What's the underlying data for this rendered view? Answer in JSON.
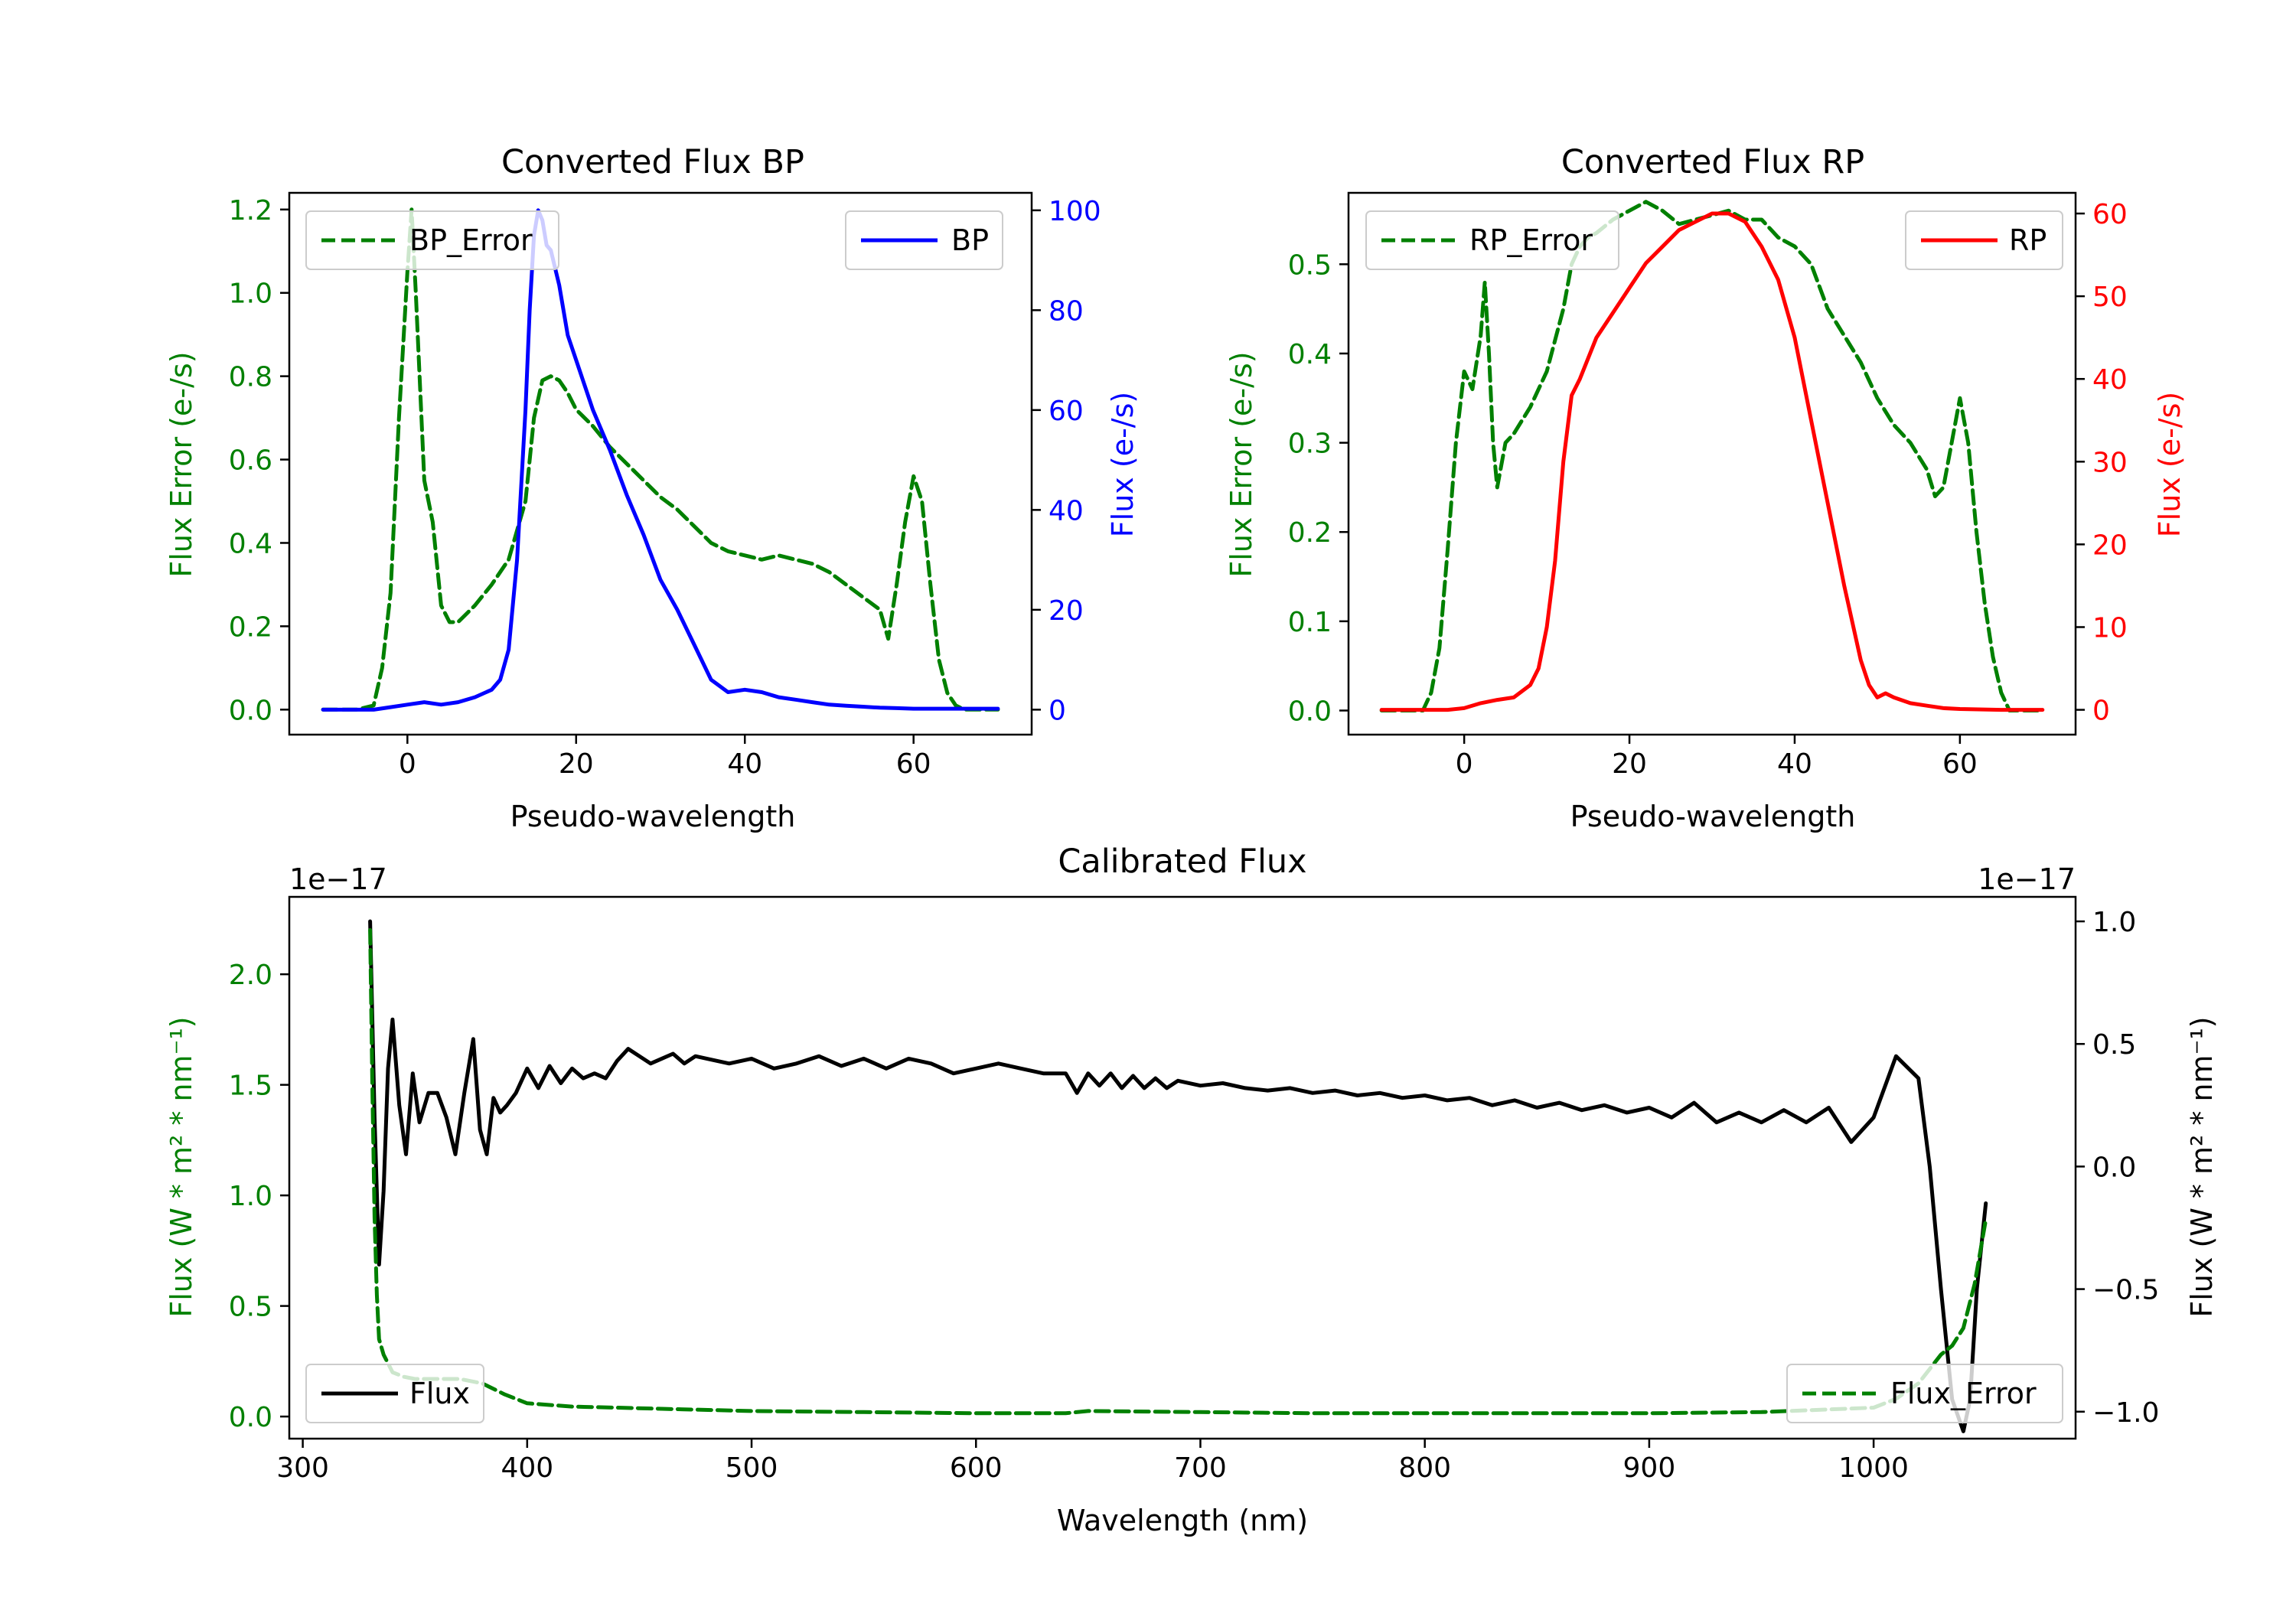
{
  "colors": {
    "bp": "#0000ff",
    "rp": "#ff0000",
    "error": "#008000",
    "flux": "#000000",
    "axis": "#000000"
  },
  "chart_data": [
    {
      "id": "bp",
      "type": "line",
      "title": "Converted Flux BP",
      "xlabel": "Pseudo-wavelength",
      "ylabel_left": "Flux Error (e-/s)",
      "ylabel_right": "Flux (e-/s)",
      "xlim": [
        -14,
        74
      ],
      "ylim_left": [
        -0.06,
        1.24
      ],
      "ylim_right": [
        -5,
        103.5
      ],
      "xticks": [
        0,
        20,
        40,
        60
      ],
      "yticks_left": [
        0.0,
        0.2,
        0.4,
        0.6,
        0.8,
        1.0,
        1.2
      ],
      "yticks_left_labels": [
        "0.0",
        "0.2",
        "0.4",
        "0.6",
        "0.8",
        "1.0",
        "1.2"
      ],
      "yticks_right": [
        0,
        20,
        40,
        60,
        80,
        100
      ],
      "yticks_right_labels": [
        "0",
        "20",
        "40",
        "60",
        "80",
        "100"
      ],
      "legend_left": {
        "label": "BP_Error",
        "placement": "upper left"
      },
      "legend_right": {
        "label": "BP",
        "placement": "upper right"
      },
      "series": [
        {
          "name": "BP_Error",
          "axis": "left",
          "style": "dashed",
          "color_key": "error",
          "x": [
            -10,
            -6,
            -4,
            -3,
            -2,
            -1,
            0,
            0.5,
            1,
            2,
            3,
            4,
            5,
            6,
            7,
            8,
            10,
            12,
            14,
            15,
            16,
            17,
            18,
            19,
            20,
            22,
            24,
            26,
            28,
            30,
            32,
            34,
            36,
            38,
            40,
            42,
            44,
            46,
            48,
            50,
            52,
            54,
            56,
            57,
            58,
            59,
            60,
            61,
            62,
            63,
            64,
            65,
            66,
            68,
            70
          ],
          "y": [
            0.0,
            0.0,
            0.01,
            0.1,
            0.28,
            0.7,
            1.05,
            1.2,
            1.0,
            0.55,
            0.45,
            0.25,
            0.21,
            0.21,
            0.23,
            0.25,
            0.3,
            0.36,
            0.5,
            0.7,
            0.79,
            0.8,
            0.79,
            0.76,
            0.72,
            0.68,
            0.63,
            0.59,
            0.55,
            0.51,
            0.48,
            0.44,
            0.4,
            0.38,
            0.37,
            0.36,
            0.37,
            0.36,
            0.35,
            0.33,
            0.3,
            0.27,
            0.24,
            0.17,
            0.3,
            0.45,
            0.56,
            0.5,
            0.3,
            0.12,
            0.04,
            0.01,
            0.0,
            0.0,
            0.0
          ]
        },
        {
          "name": "BP",
          "axis": "right",
          "style": "solid",
          "color_key": "bp",
          "x": [
            -10,
            -8,
            -4,
            -2,
            0,
            2,
            4,
            6,
            8,
            10,
            11,
            12,
            13,
            14,
            14.5,
            15,
            15.5,
            16,
            16.5,
            17,
            18,
            19,
            20,
            22,
            24,
            26,
            28,
            30,
            32,
            34,
            36,
            38,
            40,
            42,
            44,
            46,
            48,
            50,
            52,
            54,
            56,
            58,
            60,
            64,
            68,
            70
          ],
          "y": [
            0,
            0,
            0,
            0.5,
            1,
            1.5,
            1,
            1.5,
            2.5,
            4,
            6,
            12,
            30,
            60,
            80,
            95,
            100,
            98,
            93,
            92,
            85,
            75,
            70,
            60,
            52,
            43,
            35,
            26,
            20,
            13,
            6,
            3.5,
            4,
            3.5,
            2.5,
            2,
            1.5,
            1,
            0.8,
            0.6,
            0.4,
            0.3,
            0.2,
            0.2,
            0.2,
            0.2
          ]
        }
      ]
    },
    {
      "id": "rp",
      "type": "line",
      "title": "Converted Flux RP",
      "xlabel": "Pseudo-wavelength",
      "ylabel_left": "Flux Error (e-/s)",
      "ylabel_right": "Flux (e-/s)",
      "xlim": [
        -14,
        74
      ],
      "ylim_left": [
        -0.027,
        0.58
      ],
      "ylim_right": [
        -3,
        62.5
      ],
      "xticks": [
        0,
        20,
        40,
        60
      ],
      "yticks_left": [
        0.0,
        0.1,
        0.2,
        0.3,
        0.4,
        0.5
      ],
      "yticks_left_labels": [
        "0.0",
        "0.1",
        "0.2",
        "0.3",
        "0.4",
        "0.5"
      ],
      "yticks_right": [
        0,
        10,
        20,
        30,
        40,
        50,
        60
      ],
      "yticks_right_labels": [
        "0",
        "10",
        "20",
        "30",
        "40",
        "50",
        "60"
      ],
      "legend_left": {
        "label": "RP_Error",
        "placement": "upper left"
      },
      "legend_right": {
        "label": "RP",
        "placement": "upper right"
      },
      "series": [
        {
          "name": "RP_Error",
          "axis": "left",
          "style": "dashed",
          "color_key": "error",
          "x": [
            -10,
            -5,
            -4,
            -3,
            -2,
            -1,
            0,
            1,
            2,
            2.5,
            3,
            3.5,
            4,
            5,
            6,
            8,
            10,
            12,
            13,
            14,
            15,
            16,
            18,
            20,
            22,
            24,
            26,
            28,
            30,
            32,
            34,
            36,
            38,
            40,
            42,
            44,
            46,
            48,
            50,
            52,
            54,
            56,
            57,
            58,
            59,
            60,
            61,
            62,
            63,
            64,
            65,
            66,
            70
          ],
          "y": [
            0.0,
            0.0,
            0.02,
            0.07,
            0.18,
            0.3,
            0.38,
            0.36,
            0.42,
            0.48,
            0.4,
            0.3,
            0.25,
            0.3,
            0.31,
            0.34,
            0.38,
            0.45,
            0.5,
            0.52,
            0.53,
            0.535,
            0.55,
            0.56,
            0.57,
            0.56,
            0.545,
            0.55,
            0.555,
            0.56,
            0.55,
            0.55,
            0.53,
            0.52,
            0.5,
            0.45,
            0.42,
            0.39,
            0.35,
            0.32,
            0.3,
            0.27,
            0.24,
            0.25,
            0.3,
            0.35,
            0.3,
            0.2,
            0.12,
            0.06,
            0.02,
            0.0,
            0.0
          ]
        },
        {
          "name": "RP",
          "axis": "right",
          "style": "solid",
          "color_key": "rp",
          "x": [
            -10,
            -5,
            -2,
            0,
            2,
            4,
            6,
            8,
            9,
            10,
            11,
            12,
            13,
            14,
            16,
            18,
            20,
            22,
            24,
            26,
            28,
            30,
            32,
            34,
            36,
            38,
            40,
            42,
            44,
            46,
            48,
            49,
            50,
            51,
            52,
            54,
            56,
            58,
            60,
            65,
            70
          ],
          "y": [
            0,
            0,
            0,
            0.2,
            0.8,
            1.2,
            1.5,
            3,
            5,
            10,
            18,
            30,
            38,
            40,
            45,
            48,
            51,
            54,
            56,
            58,
            59,
            60,
            60,
            59,
            56,
            52,
            45,
            35,
            25,
            15,
            6,
            3,
            1.5,
            2,
            1.5,
            0.8,
            0.5,
            0.2,
            0.1,
            0,
            0
          ]
        }
      ]
    },
    {
      "id": "calibrated",
      "type": "line",
      "title": "Calibrated Flux",
      "xlabel": "Wavelength (nm)",
      "ylabel_left": "Flux (W * m² * nm⁻¹)",
      "ylabel_right": "Flux (W * m² * nm⁻¹)",
      "offset_left": "1e−17",
      "offset_right": "1e−17",
      "xlim": [
        294,
        1090
      ],
      "ylim_left": [
        -0.1,
        2.35
      ],
      "ylim_right": [
        -1.11,
        1.1
      ],
      "xticks": [
        300,
        400,
        500,
        600,
        700,
        800,
        900,
        1000
      ],
      "yticks_left": [
        0.0,
        0.5,
        1.0,
        1.5,
        2.0
      ],
      "yticks_left_labels": [
        "0.0",
        "0.5",
        "1.0",
        "1.5",
        "2.0"
      ],
      "yticks_right": [
        -1.0,
        -0.5,
        0.0,
        0.5,
        1.0
      ],
      "yticks_right_labels": [
        "−1.0",
        "−0.5",
        "0.0",
        "0.5",
        "1.0"
      ],
      "legend_left": {
        "label": "Flux",
        "placement": "lower left"
      },
      "legend_right": {
        "label": "Flux_Error",
        "placement": "lower right"
      },
      "series": [
        {
          "name": "Flux",
          "axis": "right",
          "style": "solid",
          "color_key": "flux",
          "x": [
            330,
            332,
            334,
            336,
            338,
            340,
            343,
            346,
            349,
            352,
            356,
            360,
            364,
            368,
            372,
            376,
            379,
            382,
            385,
            388,
            391,
            395,
            400,
            405,
            410,
            415,
            420,
            425,
            430,
            435,
            440,
            445,
            450,
            455,
            460,
            465,
            470,
            475,
            480,
            490,
            500,
            510,
            520,
            530,
            540,
            550,
            560,
            570,
            580,
            590,
            600,
            610,
            620,
            630,
            640,
            645,
            650,
            655,
            660,
            665,
            670,
            675,
            680,
            685,
            690,
            700,
            710,
            720,
            730,
            740,
            750,
            760,
            770,
            780,
            790,
            800,
            810,
            820,
            830,
            840,
            850,
            860,
            870,
            880,
            890,
            900,
            910,
            920,
            930,
            940,
            950,
            960,
            970,
            980,
            990,
            1000,
            1010,
            1020,
            1025,
            1030,
            1035,
            1040,
            1043,
            1046,
            1050
          ],
          "y": [
            1.0,
            0.2,
            -0.4,
            -0.1,
            0.4,
            0.6,
            0.25,
            0.05,
            0.38,
            0.18,
            0.3,
            0.3,
            0.2,
            0.05,
            0.3,
            0.52,
            0.15,
            0.05,
            0.28,
            0.22,
            0.25,
            0.3,
            0.4,
            0.32,
            0.41,
            0.34,
            0.4,
            0.36,
            0.38,
            0.36,
            0.43,
            0.48,
            0.45,
            0.42,
            0.44,
            0.46,
            0.42,
            0.45,
            0.44,
            0.42,
            0.44,
            0.4,
            0.42,
            0.45,
            0.41,
            0.44,
            0.4,
            0.44,
            0.42,
            0.38,
            0.4,
            0.42,
            0.4,
            0.38,
            0.38,
            0.3,
            0.38,
            0.33,
            0.38,
            0.32,
            0.37,
            0.32,
            0.36,
            0.32,
            0.35,
            0.33,
            0.34,
            0.32,
            0.31,
            0.32,
            0.3,
            0.31,
            0.29,
            0.3,
            0.28,
            0.29,
            0.27,
            0.28,
            0.25,
            0.27,
            0.24,
            0.26,
            0.23,
            0.25,
            0.22,
            0.24,
            0.2,
            0.26,
            0.18,
            0.22,
            0.18,
            0.23,
            0.18,
            0.24,
            0.1,
            0.2,
            0.45,
            0.36,
            0.0,
            -0.5,
            -0.95,
            -1.08,
            -0.95,
            -0.5,
            -0.15
          ]
        },
        {
          "name": "Flux_Error",
          "axis": "left",
          "style": "dashed",
          "color_key": "error",
          "x": [
            330,
            331,
            332,
            333,
            334,
            336,
            340,
            345,
            350,
            360,
            370,
            380,
            390,
            400,
            420,
            440,
            460,
            500,
            550,
            600,
            640,
            650,
            700,
            750,
            800,
            850,
            900,
            950,
            1000,
            1010,
            1020,
            1030,
            1035,
            1040,
            1045,
            1050
          ],
          "y": [
            2.2,
            1.5,
            0.9,
            0.55,
            0.35,
            0.28,
            0.2,
            0.18,
            0.17,
            0.17,
            0.17,
            0.15,
            0.1,
            0.06,
            0.045,
            0.04,
            0.035,
            0.025,
            0.02,
            0.015,
            0.015,
            0.025,
            0.02,
            0.015,
            0.015,
            0.015,
            0.015,
            0.02,
            0.04,
            0.08,
            0.15,
            0.28,
            0.32,
            0.4,
            0.6,
            0.89
          ]
        }
      ]
    }
  ]
}
